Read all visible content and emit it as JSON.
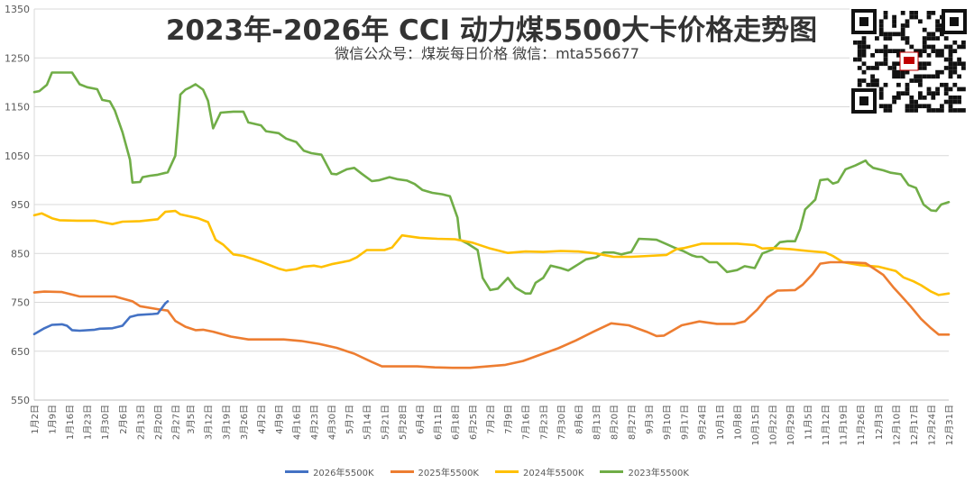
{
  "header": {
    "title": "2023年-2026年   CCI  动力煤5500大卡价格走势图",
    "subtitle": "微信公众号：煤炭每日价格  微信：mta556677"
  },
  "colors": {
    "s2026": "#4472C4",
    "s2025": "#ED7D31",
    "s2024": "#FFC000",
    "s2023": "#70AD47",
    "grid": "#D9D9D9",
    "axis_text": "#595959"
  },
  "chart_data": {
    "type": "line",
    "title": "2023年-2026年   CCI  动力煤5500大卡价格走势图",
    "ylim": [
      550,
      1350
    ],
    "yticks": [
      550,
      650,
      750,
      850,
      950,
      1050,
      1150,
      1250,
      1350
    ],
    "grid": "horizontal",
    "legend_position": "bottom",
    "x_range": [
      "1月2日",
      "12月31日"
    ],
    "x_ticks": [
      "1月2日",
      "1月9日",
      "1月16日",
      "1月23日",
      "1月30日",
      "2月6日",
      "2月13日",
      "2月20日",
      "2月27日",
      "3月5日",
      "3月12日",
      "3月19日",
      "3月26日",
      "4月2日",
      "4月9日",
      "4月16日",
      "4月23日",
      "4月30日",
      "5月7日",
      "5月14日",
      "5月21日",
      "5月28日",
      "6月4日",
      "6月11日",
      "6月18日",
      "6月25日",
      "7月2日",
      "7月9日",
      "7月16日",
      "7月23日",
      "7月30日",
      "8月6日",
      "8月13日",
      "8月20日",
      "8月27日",
      "9月3日",
      "9月10日",
      "9月17日",
      "9月24日",
      "10月1日",
      "10月8日",
      "10月15日",
      "10月22日",
      "10月29日",
      "11月5日",
      "11月12日",
      "11月19日",
      "11月26日",
      "12月3日",
      "12月10日",
      "12月17日",
      "12月24日",
      "12月31日"
    ],
    "series": [
      {
        "name": "2026年5500K",
        "color": "#4472C4",
        "points": [
          [
            "1月2日",
            685
          ],
          [
            "1月6日",
            697
          ],
          [
            "1月9日",
            704
          ],
          [
            "1月13日",
            705
          ],
          [
            "1月15日",
            702
          ],
          [
            "1月17日",
            693
          ],
          [
            "1月20日",
            692
          ],
          [
            "1月26日",
            694
          ],
          [
            "1月28日",
            696
          ],
          [
            "2月2日",
            697
          ],
          [
            "2月6日",
            702
          ],
          [
            "2月9日",
            720
          ],
          [
            "2月12日",
            724
          ],
          [
            "2月18日",
            726
          ],
          [
            "2月20日",
            727
          ],
          [
            "2月23日",
            748
          ],
          [
            "2月24日",
            752
          ]
        ]
      },
      {
        "name": "2025年5500K",
        "color": "#ED7D31",
        "points": [
          [
            "1月2日",
            770
          ],
          [
            "1月6日",
            772
          ],
          [
            "1月13日",
            771
          ],
          [
            "1月20日",
            762
          ],
          [
            "1月27日",
            762
          ],
          [
            "2月3日",
            762
          ],
          [
            "2月10日",
            752
          ],
          [
            "2月13日",
            742
          ],
          [
            "2月20日",
            736
          ],
          [
            "2月24日",
            733
          ],
          [
            "2月27日",
            712
          ],
          [
            "3月3日",
            700
          ],
          [
            "3月7日",
            693
          ],
          [
            "3月10日",
            694
          ],
          [
            "3月14日",
            690
          ],
          [
            "3月21日",
            680
          ],
          [
            "3月28日",
            674
          ],
          [
            "4月4日",
            674
          ],
          [
            "4月11日",
            674
          ],
          [
            "4月18日",
            671
          ],
          [
            "4月25日",
            665
          ],
          [
            "5月2日",
            657
          ],
          [
            "5月9日",
            645
          ],
          [
            "5月16日",
            628
          ],
          [
            "5月20日",
            619
          ],
          [
            "5月27日",
            619
          ],
          [
            "6月3日",
            619
          ],
          [
            "6月10日",
            617
          ],
          [
            "6月17日",
            616
          ],
          [
            "6月24日",
            616
          ],
          [
            "7月1日",
            619
          ],
          [
            "7月8日",
            622
          ],
          [
            "7月15日",
            630
          ],
          [
            "7月22日",
            643
          ],
          [
            "7月29日",
            656
          ],
          [
            "8月5日",
            672
          ],
          [
            "8月12日",
            690
          ],
          [
            "8月19日",
            707
          ],
          [
            "8月26日",
            703
          ],
          [
            "9月2日",
            690
          ],
          [
            "9月6日",
            681
          ],
          [
            "9月9日",
            682
          ],
          [
            "9月16日",
            703
          ],
          [
            "9月23日",
            711
          ],
          [
            "9月30日",
            706
          ],
          [
            "10月7日",
            706
          ],
          [
            "10月11日",
            711
          ],
          [
            "10月16日",
            735
          ],
          [
            "10月20日",
            760
          ],
          [
            "10月24日",
            774
          ],
          [
            "10月31日",
            775
          ],
          [
            "11月3日",
            786
          ],
          [
            "11月7日",
            808
          ],
          [
            "11月10日",
            829
          ],
          [
            "11月14日",
            832
          ],
          [
            "11月21日",
            832
          ],
          [
            "11月28日",
            830
          ],
          [
            "12月1日",
            820
          ],
          [
            "12月5日",
            806
          ],
          [
            "12月9日",
            781
          ],
          [
            "12月12日",
            764
          ],
          [
            "12月16日",
            741
          ],
          [
            "12月20日",
            716
          ],
          [
            "12月24日",
            697
          ],
          [
            "12月27日",
            684
          ],
          [
            "12月31日",
            684
          ]
        ]
      },
      {
        "name": "2024年5500K",
        "color": "#FFC000",
        "points": [
          [
            "1月2日",
            928
          ],
          [
            "1月5日",
            932
          ],
          [
            "1月9日",
            922
          ],
          [
            "1月12日",
            918
          ],
          [
            "1月19日",
            917
          ],
          [
            "1月26日",
            917
          ],
          [
            "1月30日",
            913
          ],
          [
            "2月2日",
            910
          ],
          [
            "2月6日",
            915
          ],
          [
            "2月13日",
            916
          ],
          [
            "2月20日",
            920
          ],
          [
            "2月23日",
            935
          ],
          [
            "2月27日",
            937
          ],
          [
            "3月1日",
            930
          ],
          [
            "3月8日",
            922
          ],
          [
            "3月12日",
            914
          ],
          [
            "3月15日",
            878
          ],
          [
            "3月18日",
            868
          ],
          [
            "3月22日",
            848
          ],
          [
            "3月26日",
            845
          ],
          [
            "4月2日",
            833
          ],
          [
            "4月9日",
            819
          ],
          [
            "4月12日",
            815
          ],
          [
            "4月16日",
            818
          ],
          [
            "4月19日",
            823
          ],
          [
            "4月23日",
            825
          ],
          [
            "4月26日",
            822
          ],
          [
            "4月30日",
            828
          ],
          [
            "5月7日",
            835
          ],
          [
            "5月10日",
            842
          ],
          [
            "5月14日",
            857
          ],
          [
            "5月21日",
            857
          ],
          [
            "5月24日",
            862
          ],
          [
            "5月28日",
            887
          ],
          [
            "6月4日",
            882
          ],
          [
            "6月11日",
            880
          ],
          [
            "6月18日",
            879
          ],
          [
            "6月25日",
            872
          ],
          [
            "7月2日",
            860
          ],
          [
            "7月9日",
            851
          ],
          [
            "7月16日",
            854
          ],
          [
            "7月23日",
            853
          ],
          [
            "7月30日",
            855
          ],
          [
            "8月6日",
            854
          ],
          [
            "8月13日",
            850
          ],
          [
            "8月20日",
            843
          ],
          [
            "8月27日",
            843
          ],
          [
            "9月3日",
            845
          ],
          [
            "9月10日",
            847
          ],
          [
            "9月14日",
            859
          ],
          [
            "9月17日",
            861
          ],
          [
            "9月24日",
            870
          ],
          [
            "10月1日",
            870
          ],
          [
            "10月8日",
            870
          ],
          [
            "10月15日",
            867
          ],
          [
            "10月18日",
            860
          ],
          [
            "10月22日",
            861
          ],
          [
            "10月29日",
            859
          ],
          [
            "11月5日",
            855
          ],
          [
            "11月12日",
            852
          ],
          [
            "11月15日",
            845
          ],
          [
            "11月19日",
            832
          ],
          [
            "11月26日",
            826
          ],
          [
            "12月3日",
            823
          ],
          [
            "12月10日",
            814
          ],
          [
            "12月13日",
            801
          ],
          [
            "12月17日",
            793
          ],
          [
            "12月20日",
            785
          ],
          [
            "12月24日",
            772
          ],
          [
            "12月27日",
            765
          ],
          [
            "12月31日",
            768
          ]
        ]
      },
      {
        "name": "2023年5500K",
        "color": "#70AD47",
        "points": [
          [
            "1月2日",
            1180
          ],
          [
            "1月4日",
            1182
          ],
          [
            "1月7日",
            1195
          ],
          [
            "1月9日",
            1220
          ],
          [
            "1月13日",
            1220
          ],
          [
            "1月17日",
            1220
          ],
          [
            "1月20日",
            1196
          ],
          [
            "1月23日",
            1190
          ],
          [
            "1月27日",
            1186
          ],
          [
            "1月29日",
            1164
          ],
          [
            "2月1日",
            1161
          ],
          [
            "2月3日",
            1142
          ],
          [
            "2月6日",
            1098
          ],
          [
            "2月9日",
            1042
          ],
          [
            "2月10日",
            995
          ],
          [
            "2月13日",
            996
          ],
          [
            "2月14日",
            1006
          ],
          [
            "2月17日",
            1009
          ],
          [
            "2月20日",
            1011
          ],
          [
            "2月24日",
            1016
          ],
          [
            "2月27日",
            1050
          ],
          [
            "2月28日",
            1110
          ],
          [
            "3月1日",
            1175
          ],
          [
            "3月3日",
            1185
          ],
          [
            "3月5日",
            1190
          ],
          [
            "3月7日",
            1196
          ],
          [
            "3月10日",
            1185
          ],
          [
            "3月12日",
            1162
          ],
          [
            "3月14日",
            1106
          ],
          [
            "3月17日",
            1138
          ],
          [
            "3月22日",
            1140
          ],
          [
            "3月26日",
            1140
          ],
          [
            "3月28日",
            1118
          ],
          [
            "4月2日",
            1112
          ],
          [
            "4月4日",
            1100
          ],
          [
            "4月9日",
            1096
          ],
          [
            "4月12日",
            1085
          ],
          [
            "4月16日",
            1078
          ],
          [
            "4月19日",
            1060
          ],
          [
            "4月22日",
            1055
          ],
          [
            "4月26日",
            1052
          ],
          [
            "4月30日",
            1013
          ],
          [
            "5月2日",
            1012
          ],
          [
            "5月6日",
            1022
          ],
          [
            "5月9日",
            1025
          ],
          [
            "5月12日",
            1013
          ],
          [
            "5月16日",
            998
          ],
          [
            "5月19日",
            1000
          ],
          [
            "5月23日",
            1006
          ],
          [
            "5月26日",
            1002
          ],
          [
            "5月30日",
            999
          ],
          [
            "6月2日",
            992
          ],
          [
            "6月5日",
            980
          ],
          [
            "6月9日",
            974
          ],
          [
            "6月13日",
            971
          ],
          [
            "6月16日",
            967
          ],
          [
            "6月19日",
            923
          ],
          [
            "6月20日",
            878
          ],
          [
            "6月23日",
            870
          ],
          [
            "6月27日",
            857
          ],
          [
            "6月29日",
            800
          ],
          [
            "7月2日",
            775
          ],
          [
            "7月5日",
            778
          ],
          [
            "7月9日",
            800
          ],
          [
            "7月12日",
            780
          ],
          [
            "7月16日",
            768
          ],
          [
            "7月18日",
            768
          ],
          [
            "7月20日",
            790
          ],
          [
            "7月23日",
            800
          ],
          [
            "7月26日",
            825
          ],
          [
            "7月30日",
            820
          ],
          [
            "8月2日",
            815
          ],
          [
            "8月6日",
            828
          ],
          [
            "8月9日",
            838
          ],
          [
            "8月13日",
            842
          ],
          [
            "8月16日",
            852
          ],
          [
            "8月20日",
            852
          ],
          [
            "8月23日",
            848
          ],
          [
            "8月27日",
            853
          ],
          [
            "8月30日",
            880
          ],
          [
            "9月3日",
            879
          ],
          [
            "9月6日",
            878
          ],
          [
            "9月10日",
            869
          ],
          [
            "9月13日",
            862
          ],
          [
            "9月17日",
            854
          ],
          [
            "9月20日",
            846
          ],
          [
            "9月22日",
            843
          ],
          [
            "9月24日",
            843
          ],
          [
            "9月27日",
            832
          ],
          [
            "9月30日",
            832
          ],
          [
            "10月4日",
            812
          ],
          [
            "10月8日",
            816
          ],
          [
            "10月11日",
            824
          ],
          [
            "10月15日",
            820
          ],
          [
            "10月18日",
            850
          ],
          [
            "10月22日",
            858
          ],
          [
            "10月25日",
            873
          ],
          [
            "10月28日",
            875
          ],
          [
            "10月31日",
            875
          ],
          [
            "11月2日",
            900
          ],
          [
            "11月4日",
            940
          ],
          [
            "11月8日",
            960
          ],
          [
            "11月10日",
            1000
          ],
          [
            "11月13日",
            1002
          ],
          [
            "11月15日",
            993
          ],
          [
            "11月17日",
            996
          ],
          [
            "11月20日",
            1022
          ],
          [
            "11月24日",
            1030
          ],
          [
            "11月28日",
            1040
          ],
          [
            "11月29日",
            1033
          ],
          [
            "12月1日",
            1025
          ],
          [
            "12月5日",
            1020
          ],
          [
            "12月8日",
            1015
          ],
          [
            "12月12日",
            1012
          ],
          [
            "12月15日",
            990
          ],
          [
            "12月18日",
            984
          ],
          [
            "12月21日",
            950
          ],
          [
            "12月24日",
            938
          ],
          [
            "12月26日",
            937
          ],
          [
            "12月28日",
            950
          ],
          [
            "12月31日",
            955
          ]
        ]
      }
    ]
  }
}
